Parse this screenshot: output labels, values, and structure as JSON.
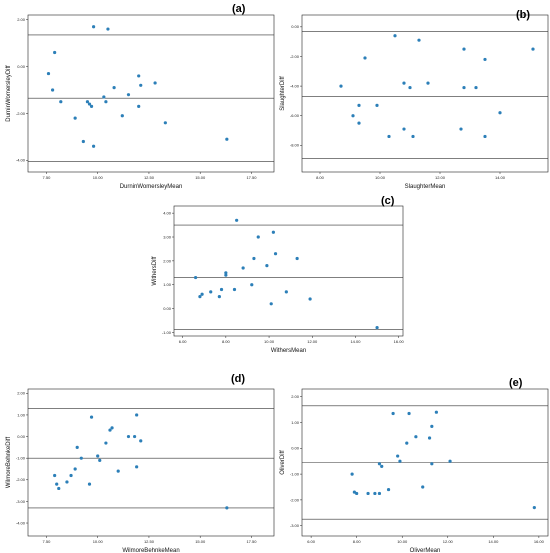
{
  "chart_data": [
    {
      "type": "scatter",
      "panel_letter": "(a)",
      "xlabel": "DurninWomersleyMean",
      "ylabel": "DurninWomersleyDiff",
      "xlim": [
        6.6,
        18.6
      ],
      "ylim": [
        -4.5,
        2.2
      ],
      "xticks": [
        7.5,
        10.0,
        12.5,
        15.0,
        17.5
      ],
      "xtick_labels": [
        "7.50",
        "10.00",
        "12.50",
        "15.00",
        "17.50"
      ],
      "yticks": [
        -4.0,
        -2.0,
        0.0,
        2.0
      ],
      "ytick_labels": [
        "-4.00",
        "-2.00",
        "0.00",
        "2.00"
      ],
      "reference_lines": [
        1.35,
        -1.35,
        -4.05
      ],
      "points": [
        [
          7.9,
          0.6
        ],
        [
          9.8,
          1.7
        ],
        [
          10.5,
          1.6
        ],
        [
          7.6,
          -0.3
        ],
        [
          7.8,
          -1.0
        ],
        [
          8.2,
          -1.5
        ],
        [
          8.9,
          -2.2
        ],
        [
          9.5,
          -1.5
        ],
        [
          9.6,
          -1.6
        ],
        [
          9.7,
          -1.7
        ],
        [
          10.3,
          -1.3
        ],
        [
          10.4,
          -1.5
        ],
        [
          10.8,
          -0.9
        ],
        [
          11.5,
          -1.2
        ],
        [
          11.2,
          -2.1
        ],
        [
          12.0,
          -0.4
        ],
        [
          12.1,
          -0.8
        ],
        [
          12.0,
          -1.7
        ],
        [
          12.8,
          -0.7
        ],
        [
          13.3,
          -2.4
        ],
        [
          9.3,
          -3.2
        ],
        [
          9.8,
          -3.4
        ],
        [
          16.3,
          -3.1
        ]
      ]
    },
    {
      "type": "scatter",
      "panel_letter": "(b)",
      "xlabel": "SlaughterMean",
      "ylabel": "SlaughterDiff",
      "xlim": [
        7.4,
        15.6
      ],
      "ylim": [
        -9.8,
        0.8
      ],
      "xticks": [
        8.0,
        10.0,
        12.0,
        14.0
      ],
      "xtick_labels": [
        "8.00",
        "10.00",
        "12.00",
        "14.00"
      ],
      "yticks": [
        0.0,
        -2.0,
        -4.0,
        -6.0,
        -8.0
      ],
      "ytick_labels": [
        "0.00",
        "-2.00",
        "-4.00",
        "-6.00",
        "-8.00"
      ],
      "reference_lines": [
        -0.3,
        -4.7,
        -8.9
      ],
      "points": [
        [
          8.7,
          -4.0
        ],
        [
          9.1,
          -6.0
        ],
        [
          9.3,
          -6.5
        ],
        [
          9.3,
          -5.3
        ],
        [
          9.5,
          -2.1
        ],
        [
          9.9,
          -5.3
        ],
        [
          10.3,
          -7.4
        ],
        [
          10.5,
          -0.6
        ],
        [
          10.8,
          -3.8
        ],
        [
          10.8,
          -6.9
        ],
        [
          11.0,
          -4.1
        ],
        [
          11.1,
          -7.4
        ],
        [
          11.3,
          -0.9
        ],
        [
          11.6,
          -3.8
        ],
        [
          12.8,
          -1.5
        ],
        [
          12.7,
          -6.9
        ],
        [
          12.8,
          -4.1
        ],
        [
          13.2,
          -4.1
        ],
        [
          13.5,
          -2.2
        ],
        [
          13.5,
          -7.4
        ],
        [
          14.0,
          -5.8
        ],
        [
          15.1,
          -1.5
        ]
      ]
    },
    {
      "type": "scatter",
      "panel_letter": "(c)",
      "xlabel": "WithersMean",
      "ylabel": "WithersDiff",
      "xlim": [
        5.6,
        16.2
      ],
      "ylim": [
        -1.15,
        4.3
      ],
      "xticks": [
        6.0,
        8.0,
        10.0,
        12.0,
        14.0,
        16.0
      ],
      "xtick_labels": [
        "6.00",
        "8.00",
        "10.00",
        "12.00",
        "14.00",
        "16.00"
      ],
      "yticks": [
        4.0,
        3.0,
        2.0,
        1.0,
        0.0,
        -1.0
      ],
      "ytick_labels": [
        "4.00",
        "3.00",
        "2.00",
        "1.00",
        "0.00",
        "-1.00"
      ],
      "reference_lines": [
        3.5,
        1.3,
        -0.87
      ],
      "points": [
        [
          6.6,
          1.3
        ],
        [
          6.8,
          0.5
        ],
        [
          6.9,
          0.6
        ],
        [
          7.3,
          0.7
        ],
        [
          7.7,
          0.5
        ],
        [
          7.8,
          0.8
        ],
        [
          8.0,
          1.4
        ],
        [
          8.0,
          1.5
        ],
        [
          8.4,
          0.8
        ],
        [
          8.5,
          3.7
        ],
        [
          8.8,
          1.7
        ],
        [
          9.2,
          1.0
        ],
        [
          9.3,
          2.1
        ],
        [
          9.5,
          3.0
        ],
        [
          9.9,
          1.8
        ],
        [
          10.1,
          0.2
        ],
        [
          10.2,
          3.2
        ],
        [
          10.3,
          2.3
        ],
        [
          10.8,
          0.7
        ],
        [
          11.3,
          2.1
        ],
        [
          11.9,
          0.4
        ],
        [
          15.0,
          -0.8
        ]
      ]
    },
    {
      "type": "scatter",
      "panel_letter": "(d)",
      "xlabel": "WilmoreBehnkeMean",
      "ylabel": "WilmoreBehnkeDiff",
      "xlim": [
        6.6,
        18.6
      ],
      "ylim": [
        -4.6,
        2.2
      ],
      "xticks": [
        7.5,
        10.0,
        12.5,
        15.0,
        17.5
      ],
      "xtick_labels": [
        "7.50",
        "10.00",
        "12.50",
        "15.00",
        "17.50"
      ],
      "yticks": [
        2.0,
        1.0,
        0.0,
        -1.0,
        -2.0,
        -3.0,
        -4.0
      ],
      "ytick_labels": [
        "2.00",
        "1.00",
        "0.00",
        "-1.00",
        "-2.00",
        "-3.00",
        "-4.00"
      ],
      "reference_lines": [
        1.3,
        -1.0,
        -3.3
      ],
      "points": [
        [
          7.9,
          -1.8
        ],
        [
          8.0,
          -2.2
        ],
        [
          8.1,
          -2.4
        ],
        [
          8.5,
          -2.1
        ],
        [
          8.7,
          -1.8
        ],
        [
          8.9,
          -1.5
        ],
        [
          9.0,
          -0.5
        ],
        [
          9.2,
          -1.0
        ],
        [
          9.6,
          -2.2
        ],
        [
          9.7,
          0.9
        ],
        [
          10.0,
          -0.9
        ],
        [
          10.1,
          -1.1
        ],
        [
          10.4,
          -0.3
        ],
        [
          10.6,
          0.3
        ],
        [
          10.7,
          0.4
        ],
        [
          11.0,
          -1.6
        ],
        [
          11.5,
          0.0
        ],
        [
          11.8,
          0.0
        ],
        [
          11.9,
          1.0
        ],
        [
          11.9,
          -1.4
        ],
        [
          12.1,
          -0.2
        ],
        [
          16.3,
          -3.3
        ]
      ]
    },
    {
      "type": "scatter",
      "panel_letter": "(e)",
      "xlabel": "OliverMean",
      "ylabel": "OliverDiff",
      "xlim": [
        5.6,
        16.4
      ],
      "ylim": [
        -3.4,
        2.3
      ],
      "xticks": [
        6.0,
        8.0,
        10.0,
        12.0,
        14.0,
        16.0
      ],
      "xtick_labels": [
        "6.00",
        "8.00",
        "10.00",
        "12.00",
        "14.00",
        "16.00"
      ],
      "yticks": [
        2.0,
        1.0,
        0.0,
        -1.0,
        -2.0,
        -3.0
      ],
      "ytick_labels": [
        "2.00",
        "1.00",
        "0.00",
        "-1.00",
        "-2.00",
        "-3.00"
      ],
      "reference_lines": [
        1.65,
        -0.55,
        -2.75
      ],
      "points": [
        [
          7.8,
          -1.0
        ],
        [
          7.9,
          -1.7
        ],
        [
          8.0,
          -1.75
        ],
        [
          8.5,
          -1.75
        ],
        [
          8.8,
          -1.75
        ],
        [
          9.0,
          -0.6
        ],
        [
          9.0,
          -1.75
        ],
        [
          9.1,
          -0.7
        ],
        [
          9.4,
          -1.6
        ],
        [
          9.6,
          1.35
        ],
        [
          9.8,
          -0.3
        ],
        [
          9.9,
          -0.5
        ],
        [
          10.2,
          0.2
        ],
        [
          10.3,
          1.35
        ],
        [
          10.6,
          0.45
        ],
        [
          10.9,
          -1.5
        ],
        [
          11.2,
          0.4
        ],
        [
          11.3,
          0.85
        ],
        [
          11.3,
          -0.6
        ],
        [
          11.5,
          1.4
        ],
        [
          12.1,
          -0.5
        ],
        [
          15.8,
          -2.3
        ]
      ]
    }
  ]
}
